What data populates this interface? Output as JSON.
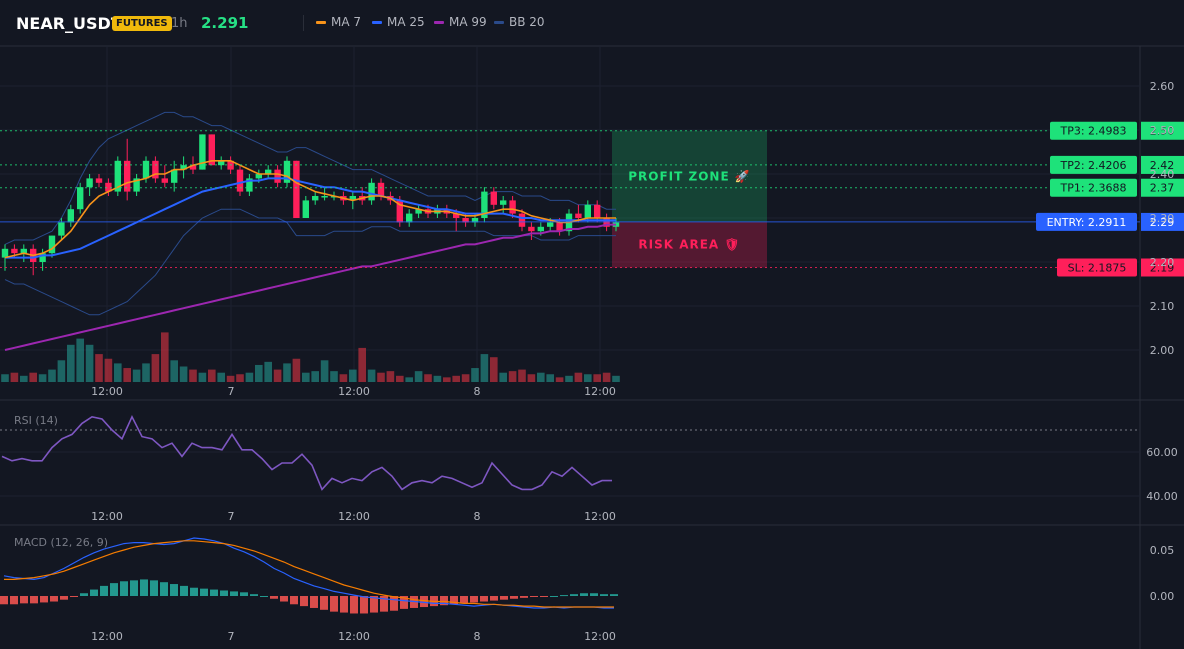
{
  "header": {
    "symbol": "NEAR_USDT",
    "badge": "FUTURES",
    "timeframe": "1h",
    "price": "2.291",
    "legend": [
      {
        "label": "MA 7",
        "color": "#f7931a"
      },
      {
        "label": "MA 25",
        "color": "#2962ff"
      },
      {
        "label": "MA 99",
        "color": "#9c27b0"
      },
      {
        "label": "BB 20",
        "color": "#2a4a8a"
      }
    ]
  },
  "colors": {
    "up": "#26a69a",
    "upBright": "#1ee27a",
    "down": "#f23645",
    "downBright": "#ff1f5a",
    "bg": "#131722"
  },
  "chart_data": [
    {
      "type": "candlestick",
      "title": "NEAR_USDT 1h",
      "x_tick_labels": [
        "12:00",
        "7",
        "12:00",
        "8",
        "12:00"
      ],
      "y_tick_labels": [
        "2.60",
        "2.50",
        "2.40",
        "2.30",
        "2.20",
        "2.10",
        "2.00"
      ],
      "ylim": [
        1.92,
        2.64
      ],
      "candles": [
        {
          "o": 2.21,
          "h": 2.24,
          "l": 2.18,
          "c": 2.23
        },
        {
          "o": 2.23,
          "h": 2.24,
          "l": 2.21,
          "c": 2.22
        },
        {
          "o": 2.22,
          "h": 2.24,
          "l": 2.2,
          "c": 2.23
        },
        {
          "o": 2.23,
          "h": 2.24,
          "l": 2.17,
          "c": 2.2
        },
        {
          "o": 2.2,
          "h": 2.23,
          "l": 2.18,
          "c": 2.22
        },
        {
          "o": 2.22,
          "h": 2.26,
          "l": 2.21,
          "c": 2.26
        },
        {
          "o": 2.26,
          "h": 2.3,
          "l": 2.25,
          "c": 2.29
        },
        {
          "o": 2.29,
          "h": 2.33,
          "l": 2.28,
          "c": 2.32
        },
        {
          "o": 2.32,
          "h": 2.38,
          "l": 2.31,
          "c": 2.37
        },
        {
          "o": 2.37,
          "h": 2.4,
          "l": 2.35,
          "c": 2.39
        },
        {
          "o": 2.39,
          "h": 2.4,
          "l": 2.37,
          "c": 2.38
        },
        {
          "o": 2.38,
          "h": 2.39,
          "l": 2.35,
          "c": 2.36
        },
        {
          "o": 2.36,
          "h": 2.44,
          "l": 2.35,
          "c": 2.43
        },
        {
          "o": 2.43,
          "h": 2.48,
          "l": 2.34,
          "c": 2.36
        },
        {
          "o": 2.36,
          "h": 2.4,
          "l": 2.35,
          "c": 2.39
        },
        {
          "o": 2.39,
          "h": 2.44,
          "l": 2.38,
          "c": 2.43
        },
        {
          "o": 2.43,
          "h": 2.44,
          "l": 2.38,
          "c": 2.39
        },
        {
          "o": 2.39,
          "h": 2.42,
          "l": 2.37,
          "c": 2.38
        },
        {
          "o": 2.38,
          "h": 2.43,
          "l": 2.36,
          "c": 2.41
        },
        {
          "o": 2.41,
          "h": 2.44,
          "l": 2.39,
          "c": 2.42
        },
        {
          "o": 2.42,
          "h": 2.44,
          "l": 2.4,
          "c": 2.41
        },
        {
          "o": 2.41,
          "h": 2.49,
          "l": 2.41,
          "c": 2.49
        },
        {
          "o": 2.49,
          "h": 2.49,
          "l": 2.42,
          "c": 2.42
        },
        {
          "o": 2.42,
          "h": 2.44,
          "l": 2.41,
          "c": 2.43
        },
        {
          "o": 2.43,
          "h": 2.44,
          "l": 2.4,
          "c": 2.41
        },
        {
          "o": 2.41,
          "h": 2.42,
          "l": 2.35,
          "c": 2.36
        },
        {
          "o": 2.36,
          "h": 2.4,
          "l": 2.35,
          "c": 2.39
        },
        {
          "o": 2.39,
          "h": 2.41,
          "l": 2.38,
          "c": 2.4
        },
        {
          "o": 2.4,
          "h": 2.42,
          "l": 2.39,
          "c": 2.41
        },
        {
          "o": 2.41,
          "h": 2.42,
          "l": 2.37,
          "c": 2.38
        },
        {
          "o": 2.38,
          "h": 2.44,
          "l": 2.37,
          "c": 2.43
        },
        {
          "o": 2.43,
          "h": 2.43,
          "l": 2.3,
          "c": 2.3
        },
        {
          "o": 2.3,
          "h": 2.35,
          "l": 2.3,
          "c": 2.34
        },
        {
          "o": 2.34,
          "h": 2.36,
          "l": 2.33,
          "c": 2.35
        },
        {
          "o": 2.35,
          "h": 2.37,
          "l": 2.34,
          "c": 2.35
        },
        {
          "o": 2.35,
          "h": 2.36,
          "l": 2.34,
          "c": 2.35
        },
        {
          "o": 2.35,
          "h": 2.36,
          "l": 2.33,
          "c": 2.34
        },
        {
          "o": 2.34,
          "h": 2.36,
          "l": 2.32,
          "c": 2.35
        },
        {
          "o": 2.35,
          "h": 2.37,
          "l": 2.33,
          "c": 2.34
        },
        {
          "o": 2.34,
          "h": 2.39,
          "l": 2.33,
          "c": 2.38
        },
        {
          "o": 2.38,
          "h": 2.39,
          "l": 2.34,
          "c": 2.35
        },
        {
          "o": 2.35,
          "h": 2.36,
          "l": 2.33,
          "c": 2.34
        },
        {
          "o": 2.34,
          "h": 2.35,
          "l": 2.28,
          "c": 2.29
        },
        {
          "o": 2.29,
          "h": 2.32,
          "l": 2.28,
          "c": 2.31
        },
        {
          "o": 2.31,
          "h": 2.33,
          "l": 2.3,
          "c": 2.32
        },
        {
          "o": 2.32,
          "h": 2.33,
          "l": 2.3,
          "c": 2.31
        },
        {
          "o": 2.31,
          "h": 2.33,
          "l": 2.3,
          "c": 2.32
        },
        {
          "o": 2.32,
          "h": 2.33,
          "l": 2.3,
          "c": 2.31
        },
        {
          "o": 2.31,
          "h": 2.32,
          "l": 2.27,
          "c": 2.3
        },
        {
          "o": 2.3,
          "h": 2.31,
          "l": 2.28,
          "c": 2.29
        },
        {
          "o": 2.29,
          "h": 2.31,
          "l": 2.28,
          "c": 2.3
        },
        {
          "o": 2.3,
          "h": 2.37,
          "l": 2.29,
          "c": 2.36
        },
        {
          "o": 2.36,
          "h": 2.37,
          "l": 2.32,
          "c": 2.33
        },
        {
          "o": 2.33,
          "h": 2.35,
          "l": 2.31,
          "c": 2.34
        },
        {
          "o": 2.34,
          "h": 2.35,
          "l": 2.3,
          "c": 2.31
        },
        {
          "o": 2.31,
          "h": 2.32,
          "l": 2.27,
          "c": 2.28
        },
        {
          "o": 2.28,
          "h": 2.29,
          "l": 2.25,
          "c": 2.27
        },
        {
          "o": 2.27,
          "h": 2.29,
          "l": 2.26,
          "c": 2.28
        },
        {
          "o": 2.28,
          "h": 2.3,
          "l": 2.27,
          "c": 2.29
        },
        {
          "o": 2.29,
          "h": 2.3,
          "l": 2.26,
          "c": 2.27
        },
        {
          "o": 2.27,
          "h": 2.32,
          "l": 2.26,
          "c": 2.31
        },
        {
          "o": 2.31,
          "h": 2.33,
          "l": 2.29,
          "c": 2.3
        },
        {
          "o": 2.3,
          "h": 2.34,
          "l": 2.29,
          "c": 2.33
        },
        {
          "o": 2.33,
          "h": 2.34,
          "l": 2.29,
          "c": 2.3
        },
        {
          "o": 2.3,
          "h": 2.31,
          "l": 2.27,
          "c": 2.28
        },
        {
          "o": 2.28,
          "h": 2.3,
          "l": 2.27,
          "c": 2.29
        }
      ],
      "volume": [
        5,
        6,
        4,
        6,
        5,
        8,
        14,
        24,
        28,
        24,
        18,
        15,
        12,
        9,
        8,
        12,
        18,
        32,
        14,
        10,
        8,
        6,
        8,
        6,
        4,
        5,
        6,
        11,
        13,
        8,
        12,
        15,
        6,
        7,
        14,
        7,
        5,
        8,
        22,
        8,
        6,
        7,
        4,
        3,
        7,
        5,
        4,
        3,
        4,
        5,
        9,
        18,
        16,
        6,
        7,
        8,
        5,
        6,
        5,
        3,
        4,
        6,
        5,
        5,
        6,
        4
      ],
      "ma7": [
        2.21,
        2.215,
        2.22,
        2.215,
        2.22,
        2.23,
        2.25,
        2.27,
        2.3,
        2.33,
        2.35,
        2.36,
        2.37,
        2.38,
        2.385,
        2.39,
        2.4,
        2.4,
        2.41,
        2.41,
        2.42,
        2.425,
        2.43,
        2.43,
        2.43,
        2.42,
        2.41,
        2.4,
        2.4,
        2.4,
        2.395,
        2.38,
        2.37,
        2.36,
        2.355,
        2.35,
        2.345,
        2.34,
        2.345,
        2.35,
        2.35,
        2.345,
        2.33,
        2.325,
        2.32,
        2.315,
        2.315,
        2.315,
        2.31,
        2.305,
        2.305,
        2.31,
        2.315,
        2.32,
        2.32,
        2.315,
        2.305,
        2.3,
        2.295,
        2.29,
        2.29,
        2.295,
        2.3,
        2.3,
        2.3,
        2.3
      ],
      "ma25": [
        2.21,
        2.21,
        2.21,
        2.21,
        2.215,
        2.215,
        2.22,
        2.225,
        2.23,
        2.24,
        2.25,
        2.26,
        2.27,
        2.28,
        2.29,
        2.3,
        2.31,
        2.32,
        2.33,
        2.34,
        2.35,
        2.36,
        2.365,
        2.37,
        2.375,
        2.38,
        2.385,
        2.385,
        2.39,
        2.39,
        2.39,
        2.385,
        2.38,
        2.375,
        2.37,
        2.37,
        2.365,
        2.36,
        2.36,
        2.355,
        2.35,
        2.345,
        2.34,
        2.335,
        2.33,
        2.325,
        2.32,
        2.32,
        2.315,
        2.31,
        2.31,
        2.31,
        2.31,
        2.31,
        2.305,
        2.3,
        2.3,
        2.295,
        2.295,
        2.295,
        2.295,
        2.295,
        2.295,
        2.295,
        2.295,
        2.295
      ],
      "ma99": [
        2.0,
        2.005,
        2.01,
        2.015,
        2.02,
        2.025,
        2.03,
        2.035,
        2.04,
        2.045,
        2.05,
        2.055,
        2.06,
        2.065,
        2.07,
        2.075,
        2.08,
        2.085,
        2.09,
        2.095,
        2.1,
        2.105,
        2.11,
        2.115,
        2.12,
        2.125,
        2.13,
        2.135,
        2.14,
        2.145,
        2.15,
        2.155,
        2.16,
        2.165,
        2.17,
        2.175,
        2.18,
        2.185,
        2.19,
        2.19,
        2.195,
        2.2,
        2.205,
        2.21,
        2.215,
        2.22,
        2.225,
        2.23,
        2.235,
        2.24,
        2.24,
        2.245,
        2.25,
        2.255,
        2.255,
        2.26,
        2.265,
        2.265,
        2.27,
        2.27,
        2.275,
        2.275,
        2.28,
        2.28,
        2.285,
        2.285
      ],
      "bb_upper": [
        2.24,
        2.25,
        2.25,
        2.25,
        2.26,
        2.27,
        2.3,
        2.34,
        2.39,
        2.43,
        2.46,
        2.48,
        2.49,
        2.5,
        2.51,
        2.52,
        2.53,
        2.54,
        2.54,
        2.53,
        2.53,
        2.52,
        2.51,
        2.51,
        2.5,
        2.49,
        2.48,
        2.47,
        2.46,
        2.45,
        2.45,
        2.46,
        2.46,
        2.45,
        2.44,
        2.43,
        2.42,
        2.41,
        2.41,
        2.41,
        2.4,
        2.39,
        2.38,
        2.37,
        2.36,
        2.35,
        2.35,
        2.35,
        2.35,
        2.35,
        2.34,
        2.35,
        2.36,
        2.36,
        2.36,
        2.35,
        2.35,
        2.35,
        2.34,
        2.34,
        2.34,
        2.33,
        2.33,
        2.33,
        2.32,
        2.32
      ],
      "bb_lower": [
        2.16,
        2.15,
        2.15,
        2.14,
        2.13,
        2.12,
        2.11,
        2.1,
        2.09,
        2.08,
        2.08,
        2.09,
        2.1,
        2.11,
        2.13,
        2.15,
        2.17,
        2.2,
        2.23,
        2.26,
        2.28,
        2.3,
        2.31,
        2.32,
        2.32,
        2.32,
        2.31,
        2.3,
        2.3,
        2.3,
        2.29,
        2.26,
        2.26,
        2.26,
        2.26,
        2.27,
        2.27,
        2.27,
        2.27,
        2.28,
        2.28,
        2.28,
        2.27,
        2.27,
        2.27,
        2.27,
        2.27,
        2.27,
        2.27,
        2.27,
        2.27,
        2.27,
        2.26,
        2.26,
        2.26,
        2.26,
        2.26,
        2.25,
        2.25,
        2.25,
        2.25,
        2.26,
        2.26,
        2.26,
        2.26,
        2.26
      ],
      "levels": [
        {
          "label": "TP3: 2.4983",
          "axis": "2.50",
          "value": 2.4983,
          "color": "#1ee27a",
          "style": "dotted"
        },
        {
          "label": "TP2: 2.4206",
          "axis": "2.42",
          "value": 2.4206,
          "color": "#1ee27a",
          "style": "dotted"
        },
        {
          "label": "TP1: 2.3688",
          "axis": "2.37",
          "value": 2.3688,
          "color": "#1ee27a",
          "style": "dotted"
        },
        {
          "label": "ENTRY: 2.2911",
          "axis": "2.29",
          "value": 2.2911,
          "color": "#2962ff",
          "style": "solid"
        },
        {
          "label": "SL: 2.1875",
          "axis": "2.19",
          "value": 2.1875,
          "color": "#ff1f5a",
          "style": "dotted"
        }
      ],
      "zones": {
        "profit_label": "PROFIT ZONE 🚀",
        "risk_label": "RISK AREA 🛡"
      }
    },
    {
      "type": "line",
      "title": "RSI (14)",
      "x_tick_labels": [
        "12:00",
        "7",
        "12:00",
        "8",
        "12:00"
      ],
      "y_tick_labels": [
        "60.00",
        "40.00"
      ],
      "ylim": [
        36,
        82
      ],
      "overbought": 70,
      "values": [
        58,
        56,
        57,
        56,
        56,
        62,
        66,
        68,
        73,
        76,
        75,
        70,
        66,
        76,
        67,
        66,
        62,
        64,
        58,
        64,
        62,
        62,
        61,
        68,
        61,
        61,
        57,
        52,
        55,
        55,
        59,
        54,
        43,
        48,
        46,
        48,
        47,
        51,
        53,
        49,
        43,
        46,
        47,
        46,
        49,
        48,
        46,
        44,
        46,
        55,
        50,
        45,
        43,
        43,
        45,
        51,
        49,
        53,
        49,
        45,
        47,
        47
      ],
      "color": "#7e57c2"
    },
    {
      "type": "bar",
      "title": "MACD (12, 26, 9)",
      "x_tick_labels": [
        "12:00",
        "7",
        "12:00",
        "8",
        "12:00"
      ],
      "y_tick_labels": [
        "0.05",
        "0.00"
      ],
      "ylim": [
        -0.035,
        0.065
      ],
      "histogram": [
        -0.009,
        -0.009,
        -0.008,
        -0.008,
        -0.007,
        -0.006,
        -0.004,
        -0.001,
        0.003,
        0.007,
        0.011,
        0.014,
        0.016,
        0.017,
        0.018,
        0.017,
        0.015,
        0.013,
        0.011,
        0.009,
        0.008,
        0.007,
        0.006,
        0.005,
        0.004,
        0.002,
        0.0,
        -0.003,
        -0.006,
        -0.009,
        -0.011,
        -0.013,
        -0.015,
        -0.017,
        -0.018,
        -0.019,
        -0.019,
        -0.018,
        -0.017,
        -0.016,
        -0.014,
        -0.013,
        -0.012,
        -0.011,
        -0.01,
        -0.009,
        -0.008,
        -0.007,
        -0.006,
        -0.005,
        -0.004,
        -0.003,
        -0.002,
        -0.001,
        -0.001,
        0.0,
        0.001,
        0.002,
        0.003,
        0.003,
        0.002,
        0.002
      ],
      "macd": [
        0.022,
        0.02,
        0.019,
        0.018,
        0.02,
        0.025,
        0.03,
        0.036,
        0.042,
        0.047,
        0.051,
        0.054,
        0.057,
        0.058,
        0.058,
        0.057,
        0.056,
        0.057,
        0.06,
        0.063,
        0.062,
        0.06,
        0.057,
        0.052,
        0.048,
        0.043,
        0.037,
        0.03,
        0.025,
        0.019,
        0.015,
        0.011,
        0.008,
        0.005,
        0.003,
        0.001,
        -0.001,
        -0.002,
        -0.003,
        -0.004,
        -0.005,
        -0.006,
        -0.007,
        -0.008,
        -0.008,
        -0.009,
        -0.01,
        -0.011,
        -0.01,
        -0.009,
        -0.01,
        -0.011,
        -0.012,
        -0.013,
        -0.013,
        -0.012,
        -0.013,
        -0.012,
        -0.012,
        -0.012,
        -0.013,
        -0.013
      ],
      "signal": [
        0.018,
        0.018,
        0.019,
        0.02,
        0.022,
        0.024,
        0.027,
        0.031,
        0.035,
        0.039,
        0.043,
        0.047,
        0.05,
        0.053,
        0.055,
        0.057,
        0.058,
        0.059,
        0.06,
        0.06,
        0.059,
        0.058,
        0.057,
        0.055,
        0.052,
        0.049,
        0.045,
        0.041,
        0.037,
        0.032,
        0.028,
        0.024,
        0.02,
        0.016,
        0.012,
        0.009,
        0.006,
        0.003,
        0.001,
        -0.001,
        -0.002,
        -0.004,
        -0.005,
        -0.006,
        -0.006,
        -0.007,
        -0.008,
        -0.008,
        -0.009,
        -0.009,
        -0.01,
        -0.01,
        -0.011,
        -0.011,
        -0.012,
        -0.012,
        -0.012,
        -0.012,
        -0.012,
        -0.012,
        -0.012,
        -0.012
      ],
      "macd_color": "#2962ff",
      "signal_color": "#f57c00"
    }
  ]
}
